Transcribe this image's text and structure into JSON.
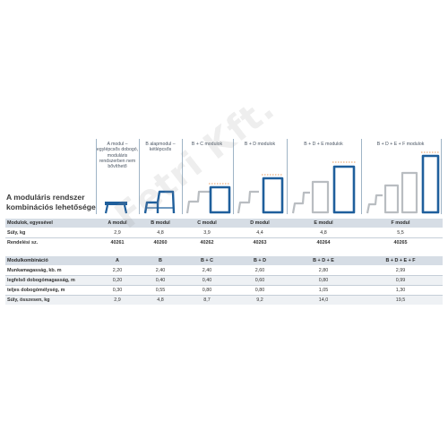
{
  "title": {
    "lines": [
      "A moduláris rendszer",
      "kombinációs lehetősége"
    ]
  },
  "columns": [
    {
      "lines": [
        "A modul –",
        "egylépcsős dobogó,",
        "moduláris",
        "rendszerben nem",
        "bővíthető"
      ]
    },
    {
      "lines": [
        "B alapmodul –",
        "kétlépcsős"
      ]
    },
    {
      "lines": [
        "B + C modulok"
      ]
    },
    {
      "lines": [
        "B + D modulok"
      ]
    },
    {
      "lines": [
        "B + D + E modulok"
      ]
    },
    {
      "lines": [
        "B + D + E + F modulok"
      ]
    }
  ],
  "table1": {
    "rows": [
      {
        "label": "Modulok, egyesével",
        "values": [
          "A modul",
          "B modul",
          "C modul",
          "D modul",
          "E modul",
          "F modul"
        ]
      },
      {
        "label": "Súly, kg",
        "values": [
          "2,9",
          "4,8",
          "3,9",
          "4,4",
          "4,8",
          "5,5"
        ]
      },
      {
        "label": "Rendelési sz.",
        "values": [
          "40261",
          "40260",
          "40262",
          "40263",
          "40264",
          "40265"
        ]
      }
    ]
  },
  "table2": {
    "rows": [
      {
        "label": "Modulkombináció",
        "values": [
          "A",
          "B",
          "B + C",
          "B + D",
          "B + D + E",
          "B + D + E + F"
        ]
      },
      {
        "label": "Munkamagasság, kb. m",
        "values": [
          "2,20",
          "2,40",
          "2,40",
          "2,60",
          "2,80",
          "2,99"
        ]
      },
      {
        "label": "legfelső dobogómagasság, m",
        "values": [
          "0,20",
          "0,40",
          "0,40",
          "0,60",
          "0,80",
          "0,99"
        ]
      },
      {
        "label": "teljes dobogómélység, m",
        "values": [
          "0,30",
          "0,55",
          "0,80",
          "0,80",
          "1,05",
          "1,30"
        ]
      },
      {
        "label": "Súly, összesen, kg",
        "values": [
          "2,9",
          "4,8",
          "8,7",
          "9,2",
          "14,0",
          "19,5"
        ]
      }
    ]
  },
  "watermark": "Fetri Kft.",
  "colors": {
    "blue_frame": "#1f5f9c",
    "gray_frame": "#b9bdc1",
    "dashed": "#e07a2a",
    "header_bg": "#d6dde5"
  }
}
